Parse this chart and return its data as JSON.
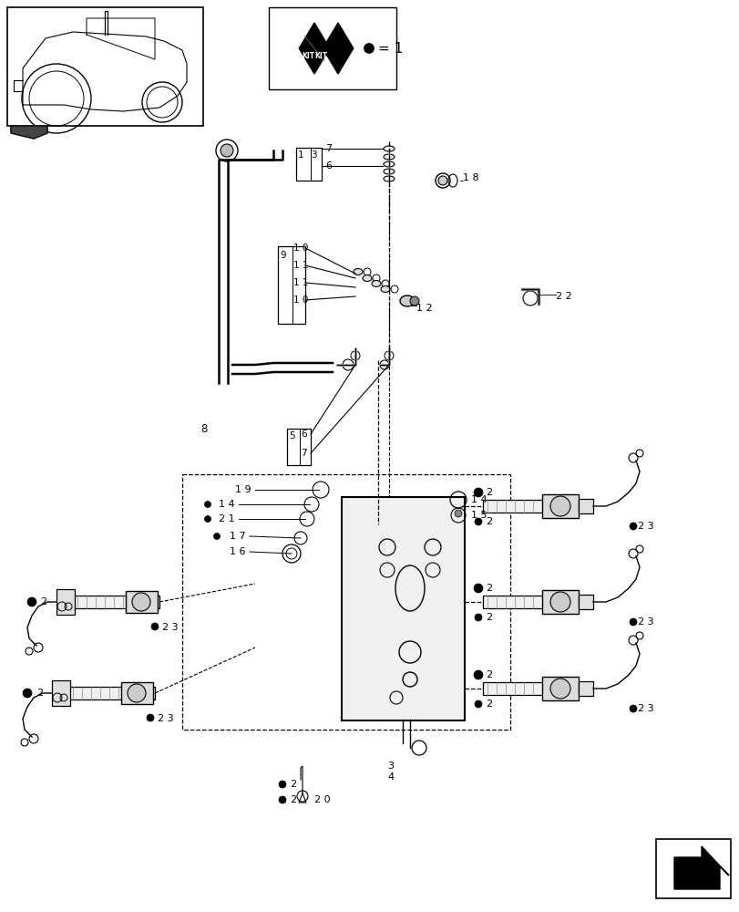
{
  "bg_color": "#ffffff",
  "line_color": "#000000",
  "figure_width": 8.12,
  "figure_height": 10.0,
  "dpi": 100
}
